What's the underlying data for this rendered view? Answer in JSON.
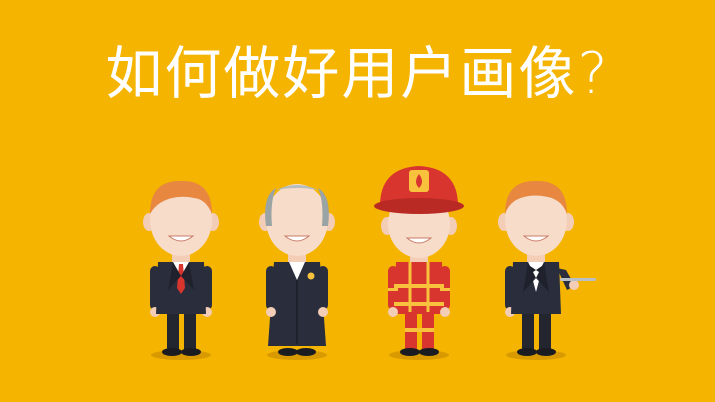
{
  "title": "如何做好用户画像?",
  "colors": {
    "background": "#F4B400",
    "title_text": "#FFFFFF",
    "skin": "#F6DCC9",
    "suit": "#2A2E3C",
    "fire_red": "#D8352E",
    "fire_yellow": "#F9C23C",
    "ginger_hair": "#E8873F",
    "grey_hair": "#9AA4A4"
  },
  "figures": [
    {
      "role": "businessman",
      "icon": "businessman-icon"
    },
    {
      "role": "judge",
      "icon": "judge-icon"
    },
    {
      "role": "firefighter",
      "icon": "firefighter-icon"
    },
    {
      "role": "waiter",
      "icon": "waiter-icon"
    }
  ]
}
